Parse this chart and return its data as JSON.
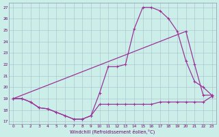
{
  "xlabel": "Windchill (Refroidissement éolien,°C)",
  "yticks": [
    17,
    18,
    19,
    20,
    21,
    22,
    23,
    24,
    25,
    26,
    27
  ],
  "line1_x": [
    0,
    1,
    2,
    3,
    4,
    5,
    6,
    7,
    8,
    9,
    10,
    11,
    12,
    13,
    14,
    15,
    16,
    17,
    18,
    19,
    20,
    21,
    22,
    23
  ],
  "line1_y": [
    19.0,
    19.0,
    18.7,
    18.2,
    18.1,
    17.8,
    17.5,
    17.2,
    17.2,
    17.5,
    18.5,
    18.5,
    18.5,
    18.5,
    18.5,
    18.5,
    18.5,
    18.7,
    18.7,
    18.7,
    18.7,
    18.7,
    18.7,
    19.2
  ],
  "line2_x": [
    0,
    1,
    2,
    3,
    4,
    5,
    6,
    7,
    8,
    9,
    10,
    11,
    12,
    13,
    14,
    15,
    16,
    17,
    18,
    19,
    20,
    21,
    22,
    23
  ],
  "line2_y": [
    19.0,
    19.0,
    18.7,
    18.2,
    18.1,
    17.8,
    17.5,
    17.2,
    17.2,
    17.5,
    19.5,
    21.8,
    21.8,
    22.0,
    25.1,
    27.0,
    27.0,
    26.7,
    26.0,
    24.9,
    22.3,
    20.5,
    20.0,
    19.3
  ],
  "line3_x": [
    0,
    20,
    21,
    22,
    23
  ],
  "line3_y": [
    19.0,
    24.9,
    22.0,
    19.3,
    19.3
  ],
  "color": "#993399",
  "bg_color": "#cceee8",
  "grid_color": "#aabbcc",
  "ylim": [
    16.8,
    27.4
  ],
  "xlim": [
    -0.5,
    23.5
  ]
}
